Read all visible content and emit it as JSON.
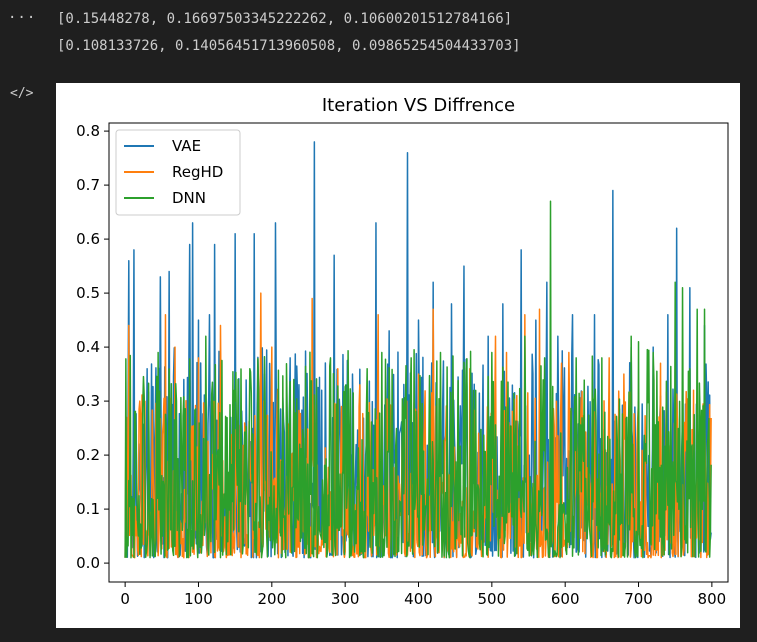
{
  "cell": {
    "output_lines": [
      "[0.15448278, 0.16697503345222262, 0.10600201512784166]",
      "[0.108133726, 0.14056451713960508, 0.09865254504433703]"
    ]
  },
  "icons": {
    "more": "ellipsis-icon",
    "output_type": "code-icon"
  },
  "chart_data": {
    "type": "line",
    "title": "Iteration VS Diffrence",
    "xlabel": "",
    "ylabel": "",
    "xlim": [
      -22,
      822
    ],
    "ylim": [
      -0.035,
      0.815
    ],
    "xticks": [
      0,
      100,
      200,
      300,
      400,
      500,
      600,
      700,
      800
    ],
    "yticks": [
      0.0,
      0.1,
      0.2,
      0.3,
      0.4,
      0.5,
      0.6,
      0.7,
      0.8
    ],
    "ytick_labels": [
      "0.0",
      "0.1",
      "0.2",
      "0.3",
      "0.4",
      "0.5",
      "0.6",
      "0.7",
      "0.8"
    ],
    "grid": false,
    "legend": "top-left",
    "n_points": 800,
    "series": [
      {
        "name": "VAE",
        "color": "#1f77b4",
        "baseline": 0.15,
        "spikes": [
          [
            5,
            0.56
          ],
          [
            12,
            0.58
          ],
          [
            30,
            0.36
          ],
          [
            48,
            0.53
          ],
          [
            60,
            0.54
          ],
          [
            80,
            0.34
          ],
          [
            88,
            0.59
          ],
          [
            92,
            0.63
          ],
          [
            100,
            0.45
          ],
          [
            115,
            0.46
          ],
          [
            122,
            0.59
          ],
          [
            150,
            0.61
          ],
          [
            176,
            0.61
          ],
          [
            190,
            0.35
          ],
          [
            205,
            0.63
          ],
          [
            225,
            0.38
          ],
          [
            258,
            0.78
          ],
          [
            285,
            0.57
          ],
          [
            310,
            0.35
          ],
          [
            342,
            0.63
          ],
          [
            360,
            0.43
          ],
          [
            385,
            0.76
          ],
          [
            400,
            0.45
          ],
          [
            420,
            0.52
          ],
          [
            445,
            0.48
          ],
          [
            462,
            0.55
          ],
          [
            495,
            0.42
          ],
          [
            515,
            0.48
          ],
          [
            540,
            0.58
          ],
          [
            560,
            0.45
          ],
          [
            575,
            0.52
          ],
          [
            590,
            0.42
          ],
          [
            610,
            0.46
          ],
          [
            640,
            0.46
          ],
          [
            665,
            0.69
          ],
          [
            690,
            0.4
          ],
          [
            720,
            0.4
          ],
          [
            740,
            0.46
          ],
          [
            752,
            0.62
          ],
          [
            770,
            0.51
          ],
          [
            790,
            0.44
          ]
        ]
      },
      {
        "name": "RegHD",
        "color": "#ff7f0e",
        "baseline": 0.12,
        "spikes": [
          [
            5,
            0.44
          ],
          [
            20,
            0.3
          ],
          [
            55,
            0.46
          ],
          [
            68,
            0.4
          ],
          [
            100,
            0.38
          ],
          [
            130,
            0.44
          ],
          [
            185,
            0.5
          ],
          [
            200,
            0.4
          ],
          [
            230,
            0.3
          ],
          [
            255,
            0.49
          ],
          [
            290,
            0.36
          ],
          [
            320,
            0.33
          ],
          [
            345,
            0.46
          ],
          [
            400,
            0.35
          ],
          [
            420,
            0.47
          ],
          [
            470,
            0.36
          ],
          [
            505,
            0.42
          ],
          [
            520,
            0.39
          ],
          [
            545,
            0.46
          ],
          [
            565,
            0.47
          ],
          [
            595,
            0.37
          ],
          [
            605,
            0.39
          ],
          [
            660,
            0.38
          ],
          [
            680,
            0.35
          ],
          [
            700,
            0.3
          ],
          [
            730,
            0.37
          ],
          [
            775,
            0.32
          ]
        ]
      },
      {
        "name": "DNN",
        "color": "#2ca02c",
        "baseline": 0.15,
        "spikes": [
          [
            15,
            0.22
          ],
          [
            45,
            0.39
          ],
          [
            70,
            0.3
          ],
          [
            110,
            0.42
          ],
          [
            150,
            0.3
          ],
          [
            170,
            0.36
          ],
          [
            230,
            0.34
          ],
          [
            280,
            0.38
          ],
          [
            330,
            0.36
          ],
          [
            350,
            0.39
          ],
          [
            390,
            0.38
          ],
          [
            430,
            0.39
          ],
          [
            500,
            0.39
          ],
          [
            545,
            0.42
          ],
          [
            580,
            0.67
          ],
          [
            615,
            0.38
          ],
          [
            650,
            0.38
          ],
          [
            690,
            0.42
          ],
          [
            700,
            0.41
          ],
          [
            720,
            0.39
          ],
          [
            750,
            0.52
          ],
          [
            760,
            0.51
          ],
          [
            780,
            0.47
          ],
          [
            790,
            0.47
          ]
        ]
      }
    ]
  }
}
